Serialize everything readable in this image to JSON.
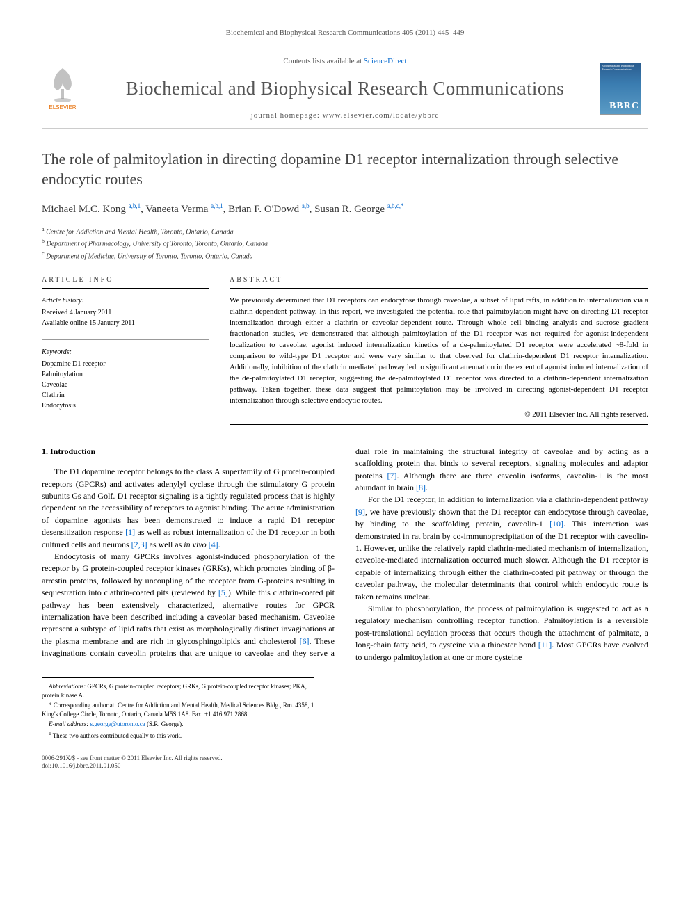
{
  "header": {
    "citation": "Biochemical and Biophysical Research Communications 405 (2011) 445–449",
    "contents_prefix": "Contents lists available at ",
    "contents_link": "ScienceDirect",
    "journal_name": "Biochemical and Biophysical Research Communications",
    "homepage_prefix": "journal homepage: ",
    "homepage_url": "www.elsevier.com/locate/ybbrc",
    "publisher": "ELSEVIER",
    "cover_abbrev": "BBRC"
  },
  "article": {
    "title": "The role of palmitoylation in directing dopamine D1 receptor internalization through selective endocytic routes",
    "authors_html": "Michael M.C. Kong <sup>a,b,1</sup>, Vaneeta Verma <sup>a,b,1</sup>, Brian F. O'Dowd <sup>a,b</sup>, Susan R. George <sup>a,b,c,*</sup>",
    "affiliations": {
      "a": "Centre for Addiction and Mental Health, Toronto, Ontario, Canada",
      "b": "Department of Pharmacology, University of Toronto, Toronto, Ontario, Canada",
      "c": "Department of Medicine, University of Toronto, Toronto, Ontario, Canada"
    }
  },
  "info": {
    "section_label": "ARTICLE INFO",
    "history_label": "Article history:",
    "received": "Received 4 January 2011",
    "available": "Available online 15 January 2011",
    "keywords_label": "Keywords:",
    "keywords": [
      "Dopamine D1 receptor",
      "Palmitoylation",
      "Caveolae",
      "Clathrin",
      "Endocytosis"
    ]
  },
  "abstract": {
    "section_label": "ABSTRACT",
    "text": "We previously determined that D1 receptors can endocytose through caveolae, a subset of lipid rafts, in addition to internalization via a clathrin-dependent pathway. In this report, we investigated the potential role that palmitoylation might have on directing D1 receptor internalization through either a clathrin or caveolar-dependent route. Through whole cell binding analysis and sucrose gradient fractionation studies, we demonstrated that although palmitoylation of the D1 receptor was not required for agonist-independent localization to caveolae, agonist induced internalization kinetics of a de-palmitoylated D1 receptor were accelerated ~8-fold in comparison to wild-type D1 receptor and were very similar to that observed for clathrin-dependent D1 receptor internalization. Additionally, inhibition of the clathrin mediated pathway led to significant attenuation in the extent of agonist induced internalization of the de-palmitoylated D1 receptor, suggesting the de-palmitoylated D1 receptor was directed to a clathrin-dependent internalization pathway. Taken together, these data suggest that palmitoylation may be involved in directing agonist-dependent D1 receptor internalization through selective endocytic routes.",
    "copyright": "© 2011 Elsevier Inc. All rights reserved."
  },
  "intro": {
    "heading": "1. Introduction",
    "p1": "The D1 dopamine receptor belongs to the class A superfamily of G protein-coupled receptors (GPCRs) and activates adenylyl cyclase through the stimulatory G protein subunits Gs and Golf. D1 receptor signaling is a tightly regulated process that is highly dependent on the accessibility of receptors to agonist binding. The acute administration of dopamine agonists has been demonstrated to induce a rapid D1 receptor desensitization response [1] as well as robust internalization of the D1 receptor in both cultured cells and neurons [2,3] as well as in vivo [4].",
    "p2": "Endocytosis of many GPCRs involves agonist-induced phosphorylation of the receptor by G protein-coupled receptor kinases (GRKs), which promotes binding of β-arrestin proteins, followed by uncoupling of the receptor from G-proteins resulting in sequestration into clathrin-coated pits (reviewed by [5]). While this clathrin-coated pit pathway has been extensively characterized, alternative routes for GPCR internalization have been described including a caveolar based mechanism. Caveolae represent a subtype of lipid rafts that exist as morphologically distinct invaginations at the plasma membrane and are rich in glycosphingolipids and cholesterol [6]. These invaginations contain caveolin proteins that are unique to caveolae and they serve a dual role in maintaining the structural integrity of caveolae and by acting as a scaffolding protein that binds to several receptors, signaling molecules and adaptor proteins [7]. Although there are three caveolin isoforms, caveolin-1 is the most abundant in brain [8].",
    "p3": "For the D1 receptor, in addition to internalization via a clathrin-dependent pathway [9], we have previously shown that the D1 receptor can endocytose through caveolae, by binding to the scaffolding protein, caveolin-1 [10]. This interaction was demonstrated in rat brain by co-immunoprecipitation of the D1 receptor with caveolin-1. However, unlike the relatively rapid clathrin-mediated mechanism of internalization, caveolae-mediated internalization occurred much slower. Although the D1 receptor is capable of internalizing through either the clathrin-coated pit pathway or through the caveolar pathway, the molecular determinants that control which endocytic route is taken remains unclear.",
    "p4": "Similar to phosphorylation, the process of palmitoylation is suggested to act as a regulatory mechanism controlling receptor function. Palmitoylation is a reversible post-translational acylation process that occurs though the attachment of palmitate, a long-chain fatty acid, to cysteine via a thioester bond [11]. Most GPCRs have evolved to undergo palmitoylation at one or more cysteine"
  },
  "footnotes": {
    "abbrev_label": "Abbreviations:",
    "abbrev_text": " GPCRs, G protein-coupled receptors; GRKs, G protein-coupled receptor kinases; PKA, protein kinase A.",
    "corresp_marker": "* ",
    "corresp_text": "Corresponding author at: Centre for Addiction and Mental Health, Medical Sciences Bldg., Rm. 4358, 1 King's College Circle, Toronto, Ontario, Canada M5S 1A8. Fax: +1 416 971 2868.",
    "email_label": "E-mail address: ",
    "email": "s.george@utoronto.ca",
    "email_suffix": " (S.R. George).",
    "equal_marker": "1 ",
    "equal_text": "These two authors contributed equally to this work."
  },
  "footer": {
    "line1": "0006-291X/$ - see front matter © 2011 Elsevier Inc. All rights reserved.",
    "line2": "doi:10.1016/j.bbrc.2011.01.050"
  },
  "colors": {
    "link": "#0066cc",
    "text": "#000000",
    "muted": "#555555",
    "banner_bg": "#ffffff"
  }
}
